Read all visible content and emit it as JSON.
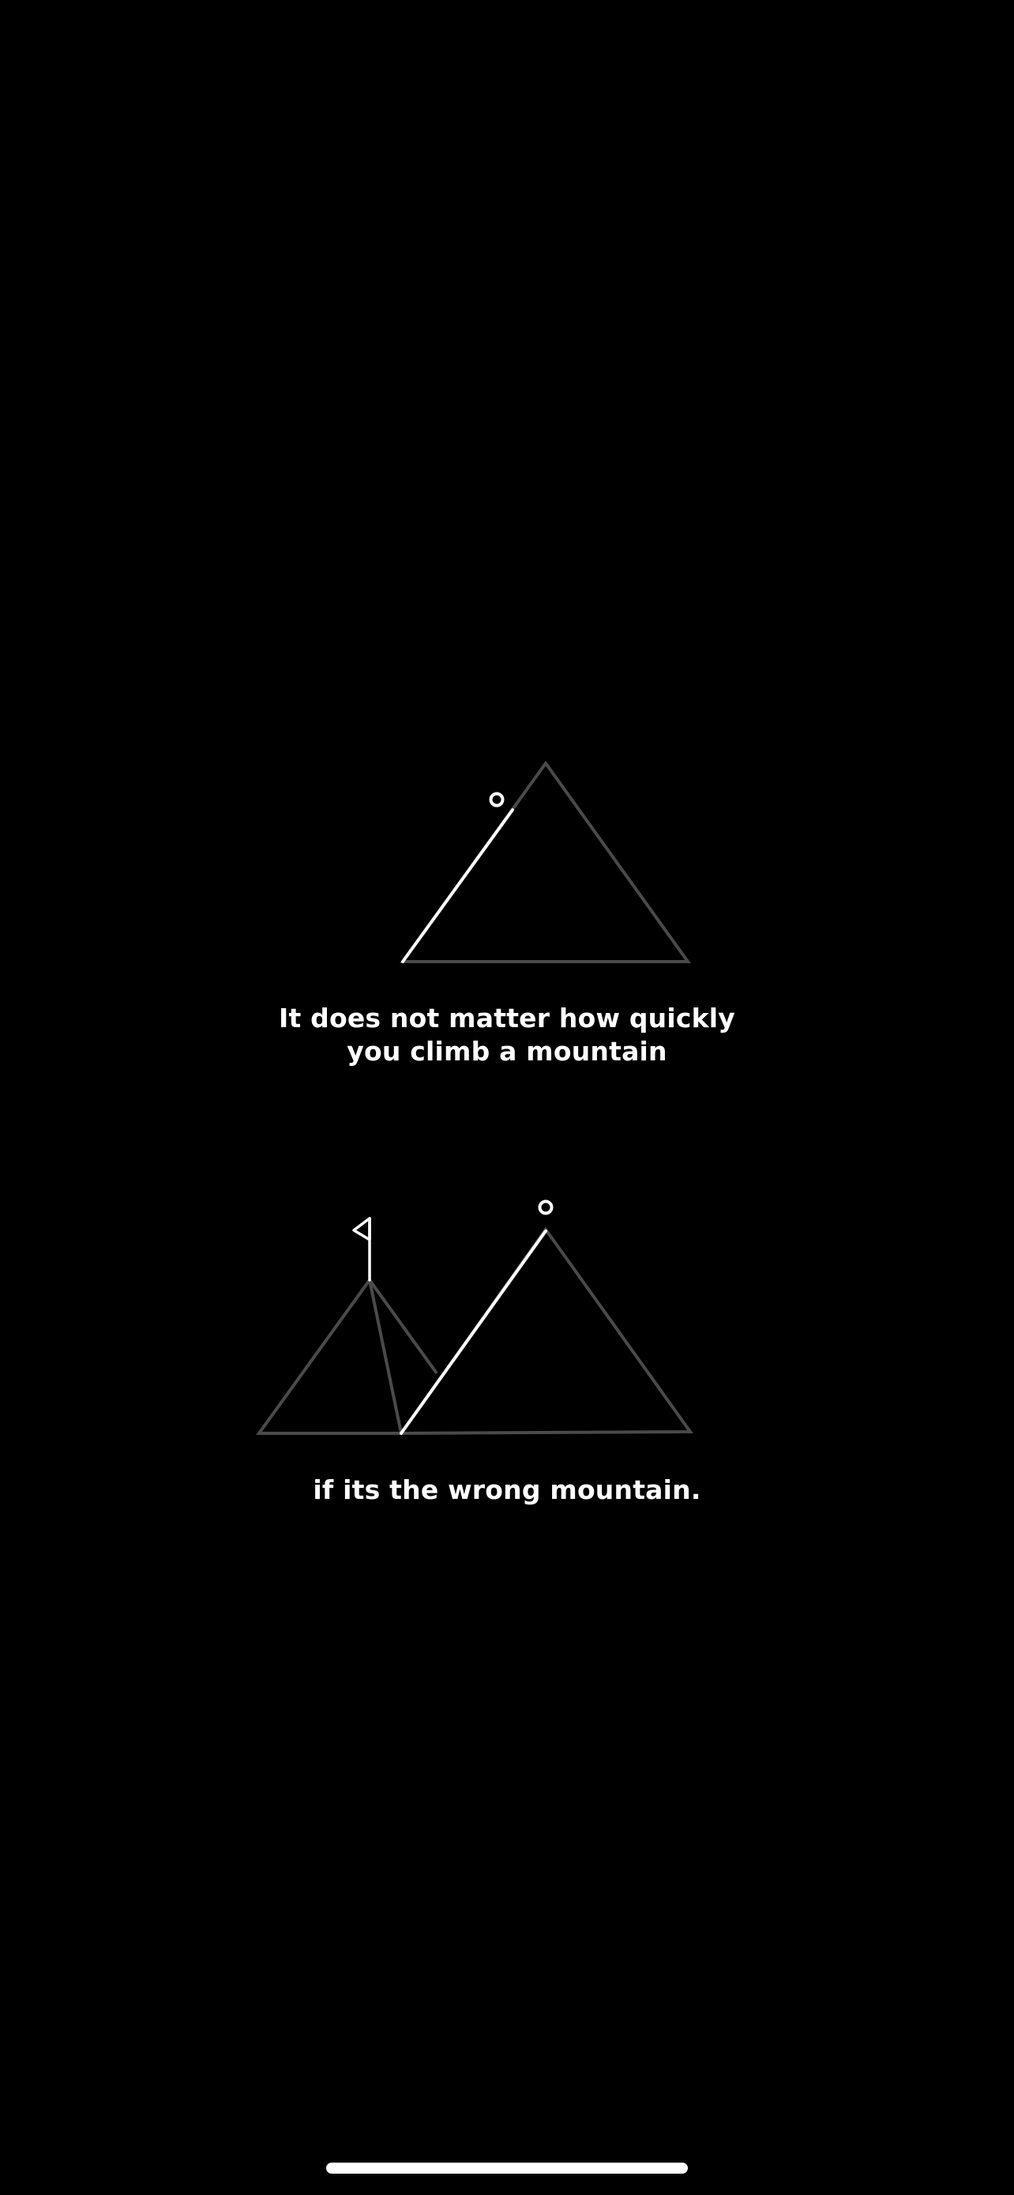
{
  "captions": {
    "top_line_1": "It does not matter how quickly",
    "top_line_2": "you climb a mountain",
    "bottom": "if its the wrong mountain."
  },
  "colors": {
    "background": "#000000",
    "mountain_outline": "#4a4a4a",
    "climb_path": "#ffffff",
    "text": "#ffffff"
  },
  "icons": {
    "climber": "climber-icon",
    "flag": "flag-icon",
    "mountain": "mountain-icon"
  }
}
